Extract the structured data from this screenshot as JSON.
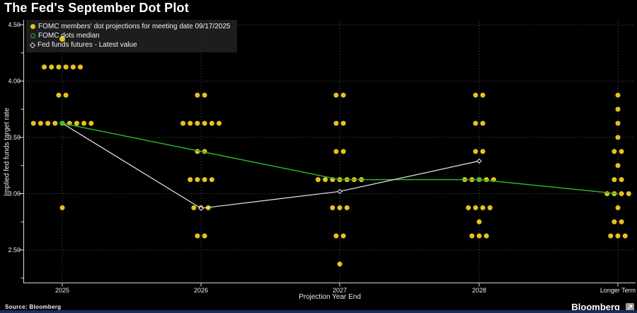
{
  "title": "The Fed's September Dot Plot",
  "legend": {
    "items": [
      {
        "marker": "yellow-dot",
        "label": "FOMC members' dot projections for meeting date 09/17/2025"
      },
      {
        "marker": "green-circle",
        "label": "FOMC dots median"
      },
      {
        "marker": "white-diamond",
        "label": "Fed funds futures - Latest value"
      }
    ]
  },
  "footer": {
    "source": "Source: Bloomberg",
    "brand": "Bloomberg"
  },
  "colors": {
    "background": "#000000",
    "dot": "#e6c21f",
    "median_line": "#27b327",
    "median_dot": "#4dbb35",
    "futures": "#e8e8e8",
    "grid": "#8a8a8a",
    "axis": "#d9d9d9",
    "text": "#ececec",
    "legend_bg": "#202020",
    "footer_bar": "#1b2c5a"
  },
  "chart_data": {
    "type": "scatter",
    "title": "The Fed's September Dot Plot",
    "x_axis": {
      "label": "Projection Year End",
      "tick_labels": [
        "2025",
        "2026",
        "2027",
        "2028",
        "Longer Term"
      ]
    },
    "y_axis": {
      "label": "Implied fed funds target rate",
      "ticks": [
        4.5,
        4.0,
        3.5,
        3.0,
        2.5
      ],
      "tick_labels": [
        "4.50",
        "4.00",
        "3.50",
        "3.00",
        "2.50"
      ],
      "minor_ticks": [
        4.25,
        3.75,
        3.25,
        2.75,
        2.25
      ],
      "range": [
        2.21,
        4.54
      ],
      "grid": "dotted"
    },
    "categories": [
      "2025",
      "2026",
      "2027",
      "2028",
      "Longer Term"
    ],
    "dot_groups": [
      {
        "category": "2025",
        "levels": [
          {
            "rate": 4.375,
            "count": 1
          },
          {
            "rate": 4.125,
            "count": 6
          },
          {
            "rate": 3.875,
            "count": 2
          },
          {
            "rate": 3.625,
            "count": 9
          },
          {
            "rate": 2.875,
            "count": 1
          }
        ]
      },
      {
        "category": "2026",
        "levels": [
          {
            "rate": 3.875,
            "count": 2
          },
          {
            "rate": 3.625,
            "count": 6
          },
          {
            "rate": 3.375,
            "count": 2
          },
          {
            "rate": 3.125,
            "count": 4
          },
          {
            "rate": 2.875,
            "count": 3
          },
          {
            "rate": 2.625,
            "count": 2
          }
        ]
      },
      {
        "category": "2027",
        "levels": [
          {
            "rate": 3.875,
            "count": 2
          },
          {
            "rate": 3.625,
            "count": 2
          },
          {
            "rate": 3.375,
            "count": 2
          },
          {
            "rate": 3.125,
            "count": 7
          },
          {
            "rate": 2.875,
            "count": 3
          },
          {
            "rate": 2.625,
            "count": 2
          },
          {
            "rate": 2.375,
            "count": 1
          }
        ]
      },
      {
        "category": "2028",
        "levels": [
          {
            "rate": 3.875,
            "count": 2
          },
          {
            "rate": 3.625,
            "count": 2
          },
          {
            "rate": 3.375,
            "count": 2
          },
          {
            "rate": 3.125,
            "count": 5
          },
          {
            "rate": 2.875,
            "count": 4
          },
          {
            "rate": 2.75,
            "count": 1
          },
          {
            "rate": 2.625,
            "count": 3
          }
        ]
      },
      {
        "category": "Longer Term",
        "levels": [
          {
            "rate": 3.875,
            "count": 1
          },
          {
            "rate": 3.75,
            "count": 1
          },
          {
            "rate": 3.625,
            "count": 1
          },
          {
            "rate": 3.5,
            "count": 1
          },
          {
            "rate": 3.375,
            "count": 2
          },
          {
            "rate": 3.25,
            "count": 1
          },
          {
            "rate": 3.125,
            "count": 2
          },
          {
            "rate": 3.0,
            "count": 4
          },
          {
            "rate": 2.875,
            "count": 1
          },
          {
            "rate": 2.75,
            "count": 2
          },
          {
            "rate": 2.625,
            "count": 3
          }
        ]
      }
    ],
    "median_series": {
      "label": "FOMC dots median",
      "values": [
        3.625,
        3.375,
        3.125,
        3.125,
        3.0
      ],
      "marker_visible": [
        true,
        false,
        false,
        true,
        false
      ]
    },
    "futures_series": {
      "label": "Fed funds futures - Latest value",
      "category_indices": [
        0,
        1,
        2,
        3
      ],
      "values": [
        3.625,
        2.87,
        3.02,
        3.29
      ],
      "marker_indices": [
        1,
        2,
        3
      ]
    }
  }
}
